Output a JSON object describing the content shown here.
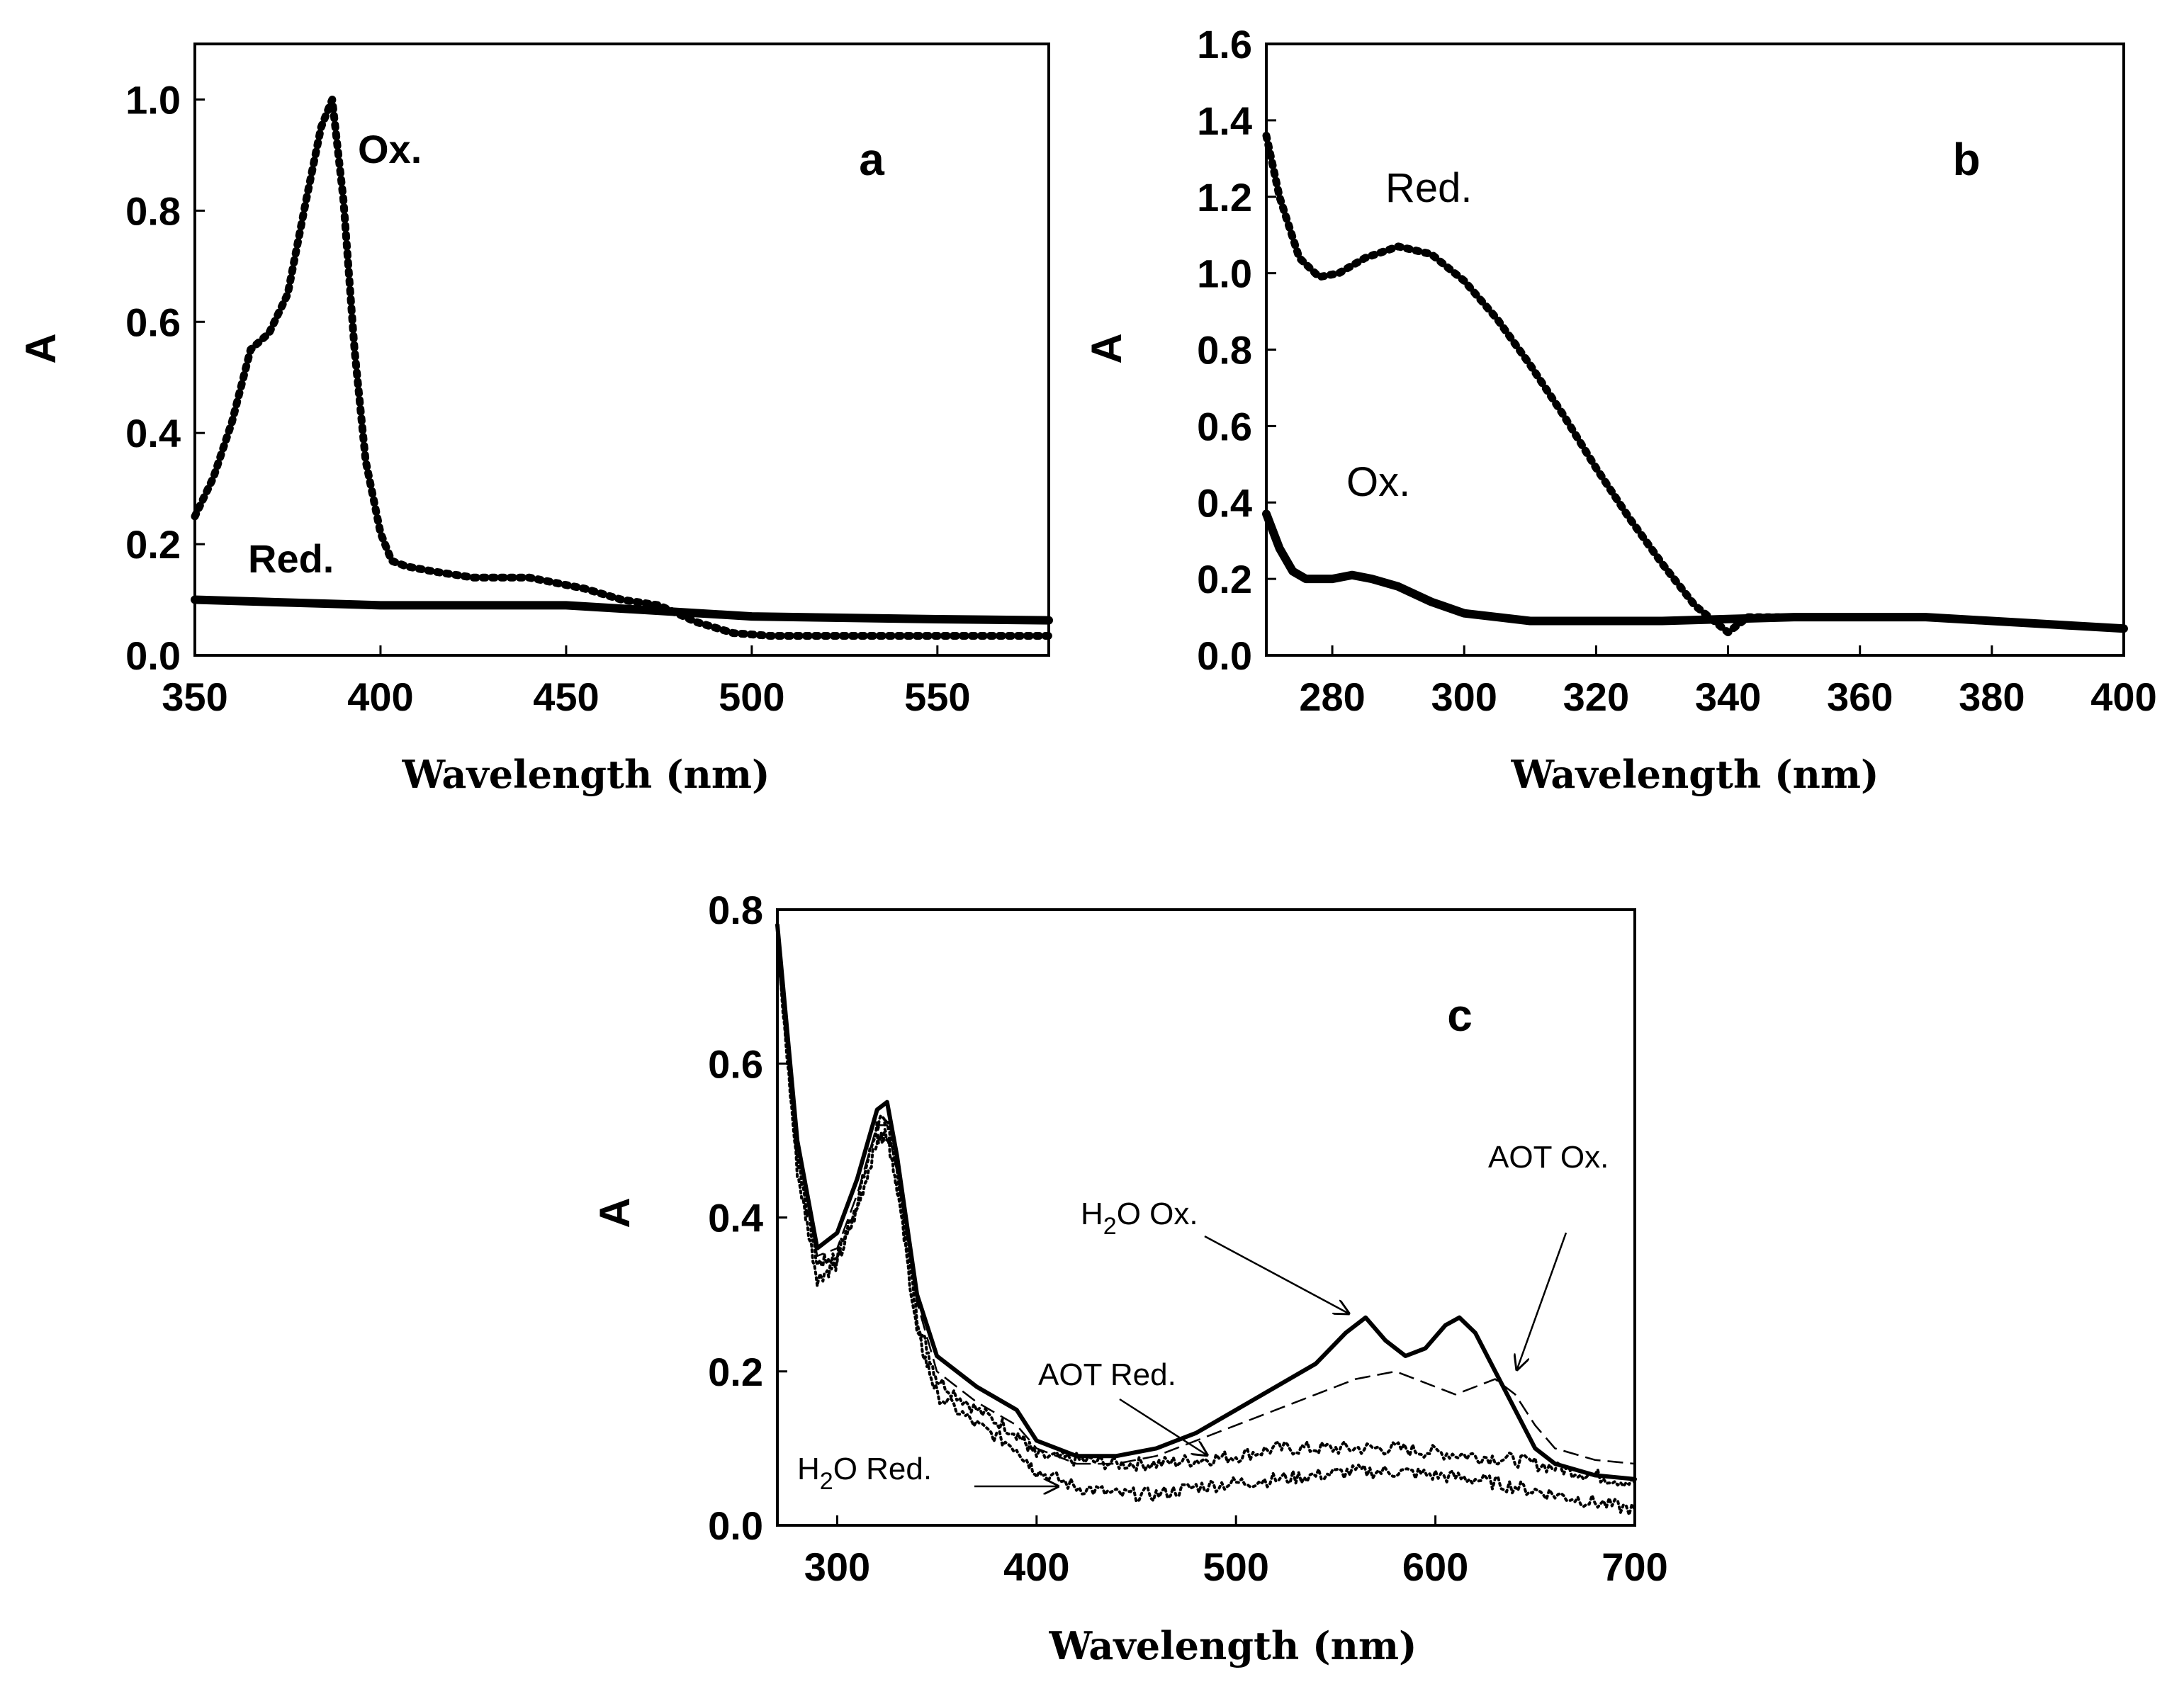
{
  "chart_data": [
    {
      "type": "line",
      "panel_label": "a",
      "xlabel": "Wavelength (nm)",
      "ylabel": "A",
      "xlim": [
        350,
        580
      ],
      "ylim": [
        0.0,
        1.1
      ],
      "xticks": [
        350,
        400,
        450,
        500,
        550
      ],
      "yticks": [
        0.0,
        0.2,
        0.4,
        0.6,
        0.8,
        1.0
      ],
      "xtick_labels": [
        "350",
        "400",
        "450",
        "500",
        "550"
      ],
      "ytick_labels": [
        "0.0",
        "0.2",
        "0.4",
        "0.6",
        "0.8",
        "1.0"
      ],
      "series": [
        {
          "name": "Ox.",
          "style": "dotted",
          "x": [
            350,
            355,
            360,
            365,
            370,
            375,
            380,
            384,
            387,
            390,
            393,
            396,
            400,
            403,
            407,
            415,
            425,
            440,
            455,
            465,
            475,
            485,
            495,
            505,
            520,
            540,
            560,
            580
          ],
          "y": [
            0.25,
            0.32,
            0.42,
            0.55,
            0.58,
            0.65,
            0.82,
            0.95,
            1.0,
            0.82,
            0.55,
            0.35,
            0.22,
            0.17,
            0.16,
            0.15,
            0.14,
            0.14,
            0.12,
            0.1,
            0.09,
            0.06,
            0.04,
            0.035,
            0.035,
            0.035,
            0.035,
            0.035
          ]
        },
        {
          "name": "Red.",
          "style": "solid",
          "x": [
            350,
            400,
            450,
            500,
            550,
            580
          ],
          "y": [
            0.1,
            0.09,
            0.09,
            0.07,
            0.065,
            0.063
          ]
        }
      ],
      "annotations": [
        {
          "text": "Ox."
        },
        {
          "text": "Red."
        }
      ]
    },
    {
      "type": "line",
      "panel_label": "b",
      "xlabel": "Wavelength (nm)",
      "ylabel": "A",
      "xlim": [
        270,
        400
      ],
      "ylim": [
        0.0,
        1.6
      ],
      "xticks": [
        280,
        300,
        320,
        340,
        360,
        380,
        400
      ],
      "yticks": [
        0.0,
        0.2,
        0.4,
        0.6,
        0.8,
        1.0,
        1.2,
        1.4,
        1.6
      ],
      "xtick_labels": [
        "280",
        "300",
        "320",
        "340",
        "360",
        "380",
        "400"
      ],
      "ytick_labels": [
        "0.0",
        "0.2",
        "0.4",
        "0.6",
        "0.8",
        "1.0",
        "1.2",
        "1.4",
        "1.6"
      ],
      "series": [
        {
          "name": "Red.",
          "style": "dotted",
          "x": [
            270,
            272,
            275,
            278,
            281,
            285,
            290,
            295,
            300,
            305,
            310,
            315,
            320,
            325,
            330,
            335,
            340,
            343,
            350,
            360,
            370,
            380,
            390,
            400
          ],
          "y": [
            1.36,
            1.2,
            1.04,
            0.99,
            1.0,
            1.04,
            1.07,
            1.05,
            0.98,
            0.88,
            0.76,
            0.63,
            0.49,
            0.36,
            0.24,
            0.13,
            0.06,
            0.1,
            0.1,
            0.1,
            0.1,
            0.09,
            0.08,
            0.07
          ]
        },
        {
          "name": "Ox.",
          "style": "solid",
          "x": [
            270,
            272,
            274,
            276,
            278,
            280,
            283,
            286,
            290,
            295,
            300,
            305,
            310,
            320,
            330,
            340,
            350,
            360,
            370,
            380,
            390,
            400
          ],
          "y": [
            0.37,
            0.28,
            0.22,
            0.2,
            0.2,
            0.2,
            0.21,
            0.2,
            0.18,
            0.14,
            0.11,
            0.1,
            0.09,
            0.09,
            0.09,
            0.095,
            0.1,
            0.1,
            0.1,
            0.09,
            0.08,
            0.07
          ]
        }
      ],
      "annotations": [
        {
          "text": "Red."
        },
        {
          "text": "Ox."
        }
      ]
    },
    {
      "type": "line",
      "panel_label": "c",
      "xlabel": "Wavelength (nm)",
      "ylabel": "A",
      "xlim": [
        270,
        700
      ],
      "ylim": [
        0.0,
        0.8
      ],
      "xticks": [
        300,
        400,
        500,
        600,
        700
      ],
      "yticks": [
        0.0,
        0.2,
        0.4,
        0.6,
        0.8
      ],
      "xtick_labels": [
        "300",
        "400",
        "500",
        "600",
        "700"
      ],
      "ytick_labels": [
        "0.0",
        "0.2",
        "0.4",
        "0.6",
        "0.8"
      ],
      "series": [
        {
          "name": "H2O Ox.",
          "style": "solid-thick",
          "x": [
            270,
            280,
            290,
            300,
            310,
            320,
            325,
            330,
            340,
            350,
            370,
            390,
            400,
            420,
            440,
            460,
            480,
            500,
            520,
            540,
            555,
            565,
            575,
            585,
            595,
            605,
            612,
            620,
            630,
            640,
            650,
            660,
            680,
            700
          ],
          "y": [
            0.78,
            0.5,
            0.36,
            0.38,
            0.45,
            0.54,
            0.55,
            0.48,
            0.3,
            0.22,
            0.18,
            0.15,
            0.11,
            0.09,
            0.09,
            0.1,
            0.12,
            0.15,
            0.18,
            0.21,
            0.25,
            0.27,
            0.24,
            0.22,
            0.23,
            0.26,
            0.27,
            0.25,
            0.2,
            0.15,
            0.1,
            0.08,
            0.065,
            0.06
          ]
        },
        {
          "name": "AOT Ox.",
          "style": "dashed-thin",
          "x": [
            270,
            280,
            290,
            300,
            310,
            320,
            325,
            330,
            340,
            350,
            370,
            390,
            400,
            420,
            440,
            460,
            480,
            500,
            520,
            540,
            560,
            580,
            590,
            600,
            610,
            620,
            630,
            640,
            650,
            660,
            680,
            700
          ],
          "y": [
            0.77,
            0.49,
            0.35,
            0.36,
            0.43,
            0.52,
            0.52,
            0.46,
            0.29,
            0.2,
            0.16,
            0.13,
            0.1,
            0.08,
            0.08,
            0.09,
            0.11,
            0.13,
            0.15,
            0.17,
            0.19,
            0.2,
            0.19,
            0.18,
            0.17,
            0.18,
            0.19,
            0.17,
            0.13,
            0.1,
            0.085,
            0.08
          ]
        },
        {
          "name": "AOT Red.",
          "style": "dotted-noisy",
          "x": [
            270,
            280,
            290,
            300,
            310,
            320,
            325,
            330,
            340,
            350,
            370,
            390,
            400,
            420,
            440,
            460,
            480,
            500,
            520,
            540,
            560,
            580,
            600,
            620,
            640,
            660,
            680,
            700
          ],
          "y": [
            0.76,
            0.48,
            0.34,
            0.35,
            0.42,
            0.52,
            0.53,
            0.46,
            0.27,
            0.19,
            0.15,
            0.12,
            0.09,
            0.085,
            0.08,
            0.08,
            0.085,
            0.09,
            0.1,
            0.1,
            0.1,
            0.1,
            0.095,
            0.09,
            0.085,
            0.075,
            0.065,
            0.055
          ]
        },
        {
          "name": "H2O Red.",
          "style": "dotted-noisy",
          "x": [
            270,
            280,
            290,
            300,
            310,
            320,
            325,
            330,
            340,
            350,
            370,
            390,
            400,
            420,
            440,
            460,
            480,
            500,
            520,
            540,
            560,
            580,
            600,
            620,
            640,
            660,
            680,
            700
          ],
          "y": [
            0.75,
            0.46,
            0.32,
            0.34,
            0.41,
            0.5,
            0.51,
            0.44,
            0.25,
            0.17,
            0.13,
            0.1,
            0.07,
            0.05,
            0.04,
            0.04,
            0.05,
            0.055,
            0.06,
            0.065,
            0.07,
            0.07,
            0.065,
            0.06,
            0.05,
            0.04,
            0.03,
            0.02
          ]
        }
      ],
      "annotations": [
        {
          "text": "H",
          "sub": "2",
          "rest": "O Ox."
        },
        {
          "text": "AOT Ox."
        },
        {
          "text": "AOT Red."
        },
        {
          "text": "H",
          "sub": "2",
          "rest": "O Red."
        }
      ]
    }
  ]
}
